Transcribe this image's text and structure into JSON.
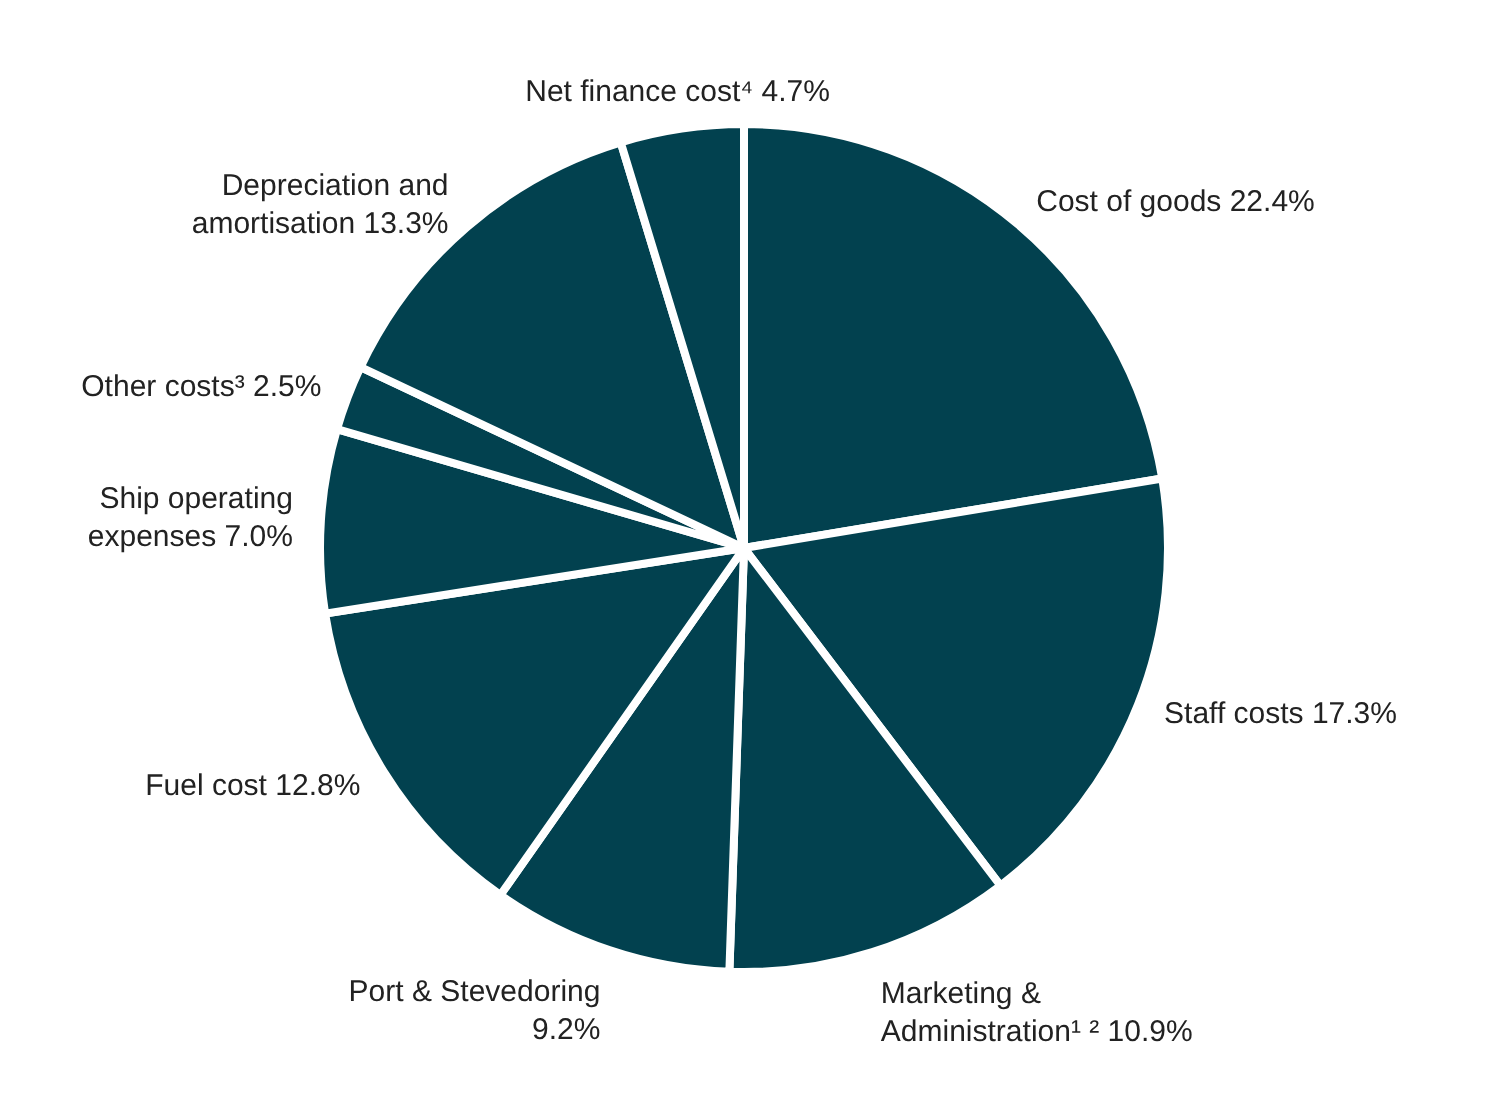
{
  "chart_data": {
    "type": "pie",
    "categories": [
      "Cost of goods",
      "Staff costs",
      "Marketing & Administration¹ ²",
      "Port & Stevedoring",
      "Fuel cost",
      "Ship operating expenses",
      "Other costs³",
      "Depreciation and amortisation",
      "Net finance cost⁴"
    ],
    "values": [
      22.4,
      17.3,
      10.9,
      9.2,
      12.8,
      7.0,
      2.5,
      13.3,
      4.7
    ],
    "value_labels": [
      "22.4%",
      "17.3%",
      "10.9%",
      "9.2%",
      "12.8%",
      "7.0%",
      "2.5%",
      "13.3%",
      "4.7%"
    ],
    "colors": [
      "#02414f",
      "#02414f",
      "#02414f",
      "#02414f",
      "#02414f",
      "#02414f",
      "#02414f",
      "#02414f",
      "#02414f"
    ],
    "legend": false
  }
}
